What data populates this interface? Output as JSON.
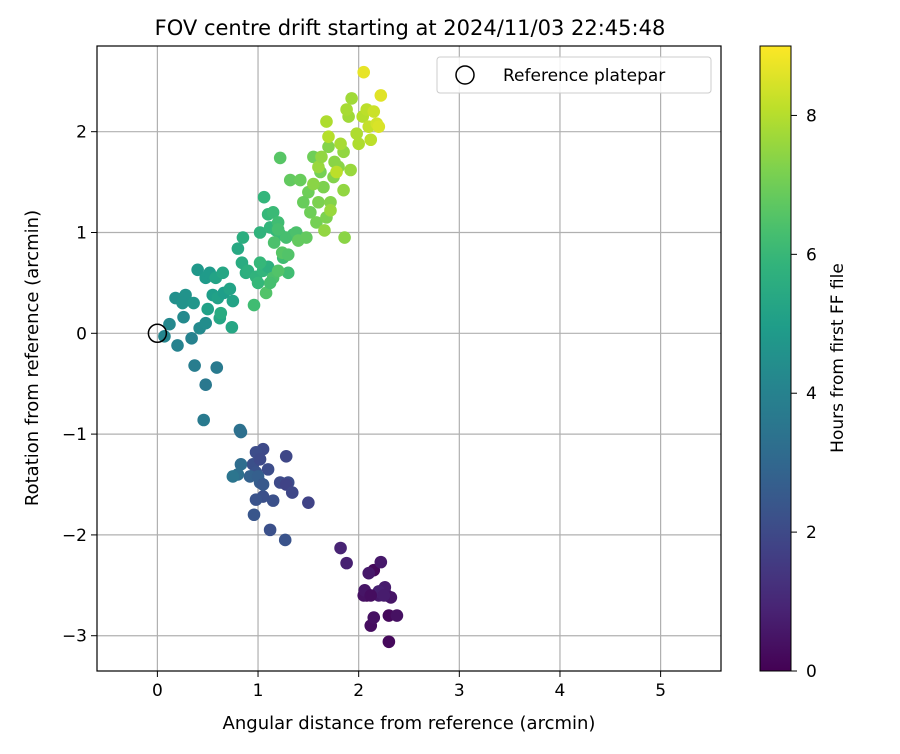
{
  "chart_data": {
    "type": "scatter",
    "title": "FOV centre drift starting at 2024/11/03 22:45:48",
    "xlabel": "Angular distance from reference (arcmin)",
    "ylabel": "Rotation from reference (arcmin)",
    "xlim": [
      -0.6,
      5.6
    ],
    "ylim": [
      -3.35,
      2.85
    ],
    "xticks": [
      0,
      1,
      2,
      3,
      4,
      5
    ],
    "xtick_labels": [
      "0",
      "1",
      "2",
      "3",
      "4",
      "5"
    ],
    "yticks": [
      -3,
      -2,
      -1,
      0,
      1,
      2
    ],
    "ytick_labels": [
      "−3",
      "−2",
      "−1",
      "0",
      "1",
      "2"
    ],
    "grid": true,
    "legend": {
      "placement": "upper right",
      "entries": [
        "Reference platepar"
      ]
    },
    "reference_point": {
      "x": 0,
      "y": 0,
      "label": "Reference platepar"
    },
    "colorbar": {
      "label": "Hours from first FF file",
      "min": 0,
      "max": 9,
      "ticks": [
        0,
        2,
        4,
        6,
        8
      ],
      "tick_labels": [
        "0",
        "2",
        "4",
        "6",
        "8"
      ],
      "colormap": "viridis"
    },
    "colormap_stops": [
      "#440154",
      "#482878",
      "#3e4a89",
      "#31688e",
      "#26828e",
      "#1f9e89",
      "#35b779",
      "#6ece58",
      "#b5de2b",
      "#fde725"
    ],
    "points": [
      [
        2.08,
        -2.6,
        0.1
      ],
      [
        2.15,
        -2.35,
        0.2
      ],
      [
        2.25,
        -2.55,
        0.3
      ],
      [
        2.3,
        -2.8,
        0.2
      ],
      [
        2.05,
        -2.6,
        0.4
      ],
      [
        2.12,
        -2.9,
        0.3
      ],
      [
        2.28,
        -2.6,
        0.5
      ],
      [
        2.38,
        -2.8,
        0.4
      ],
      [
        2.22,
        -2.27,
        0.6
      ],
      [
        2.3,
        -3.06,
        0.2
      ],
      [
        2.06,
        -2.55,
        0.5
      ],
      [
        2.2,
        -2.6,
        0.6
      ],
      [
        2.26,
        -2.52,
        0.7
      ],
      [
        2.15,
        -2.82,
        0.4
      ],
      [
        1.88,
        -2.28,
        0.8
      ],
      [
        1.82,
        -2.13,
        0.9
      ],
      [
        2.32,
        -2.62,
        0.5
      ],
      [
        2.1,
        -2.38,
        0.6
      ],
      [
        2.2,
        -2.56,
        0.8
      ],
      [
        2.25,
        -2.6,
        0.7
      ],
      [
        2.12,
        -2.6,
        0.3
      ],
      [
        1.05,
        -1.15,
        2.0
      ],
      [
        0.98,
        -1.18,
        2.1
      ],
      [
        1.28,
        -1.22,
        1.9
      ],
      [
        1.1,
        -1.35,
        2.1
      ],
      [
        0.95,
        -1.3,
        2.2
      ],
      [
        1.02,
        -1.25,
        2.0
      ],
      [
        0.98,
        -1.38,
        2.3
      ],
      [
        1.22,
        -1.48,
        2.0
      ],
      [
        1.3,
        -1.48,
        2.1
      ],
      [
        1.28,
        -1.5,
        1.8
      ],
      [
        1.34,
        -1.58,
        1.9
      ],
      [
        1.5,
        -1.68,
        1.8
      ],
      [
        1.05,
        -1.62,
        2.2
      ],
      [
        0.98,
        -1.65,
        2.3
      ],
      [
        1.15,
        -1.66,
        2.2
      ],
      [
        0.96,
        -1.8,
        2.4
      ],
      [
        1.12,
        -1.95,
        2.2
      ],
      [
        1.27,
        -2.05,
        2.3
      ],
      [
        1.02,
        -1.48,
        2.6
      ],
      [
        0.92,
        -1.42,
        2.8
      ],
      [
        1.0,
        -1.42,
        2.7
      ],
      [
        1.05,
        -1.5,
        2.5
      ],
      [
        0.83,
        -1.3,
        3.2
      ],
      [
        0.82,
        -0.96,
        3.4
      ],
      [
        0.83,
        -0.98,
        3.3
      ],
      [
        0.8,
        -1.4,
        3.3
      ],
      [
        0.75,
        -1.42,
        3.5
      ],
      [
        0.46,
        -0.86,
        3.7
      ],
      [
        0.48,
        -0.51,
        3.6
      ],
      [
        0.37,
        -0.32,
        3.8
      ],
      [
        0.59,
        -0.34,
        3.7
      ],
      [
        0.2,
        -0.12,
        4.0
      ],
      [
        0.07,
        -0.03,
        4.1
      ],
      [
        0.34,
        -0.05,
        4.0
      ],
      [
        0.12,
        0.09,
        4.2
      ],
      [
        0.42,
        0.05,
        4.3
      ],
      [
        0.48,
        0.1,
        4.4
      ],
      [
        0.26,
        0.16,
        4.3
      ],
      [
        0.18,
        0.35,
        4.5
      ],
      [
        0.28,
        0.38,
        4.6
      ],
      [
        0.25,
        0.3,
        4.6
      ],
      [
        0.36,
        0.3,
        4.7
      ],
      [
        0.4,
        0.63,
        4.8
      ],
      [
        0.48,
        0.55,
        4.9
      ],
      [
        0.52,
        0.6,
        4.9
      ],
      [
        0.55,
        0.38,
        5.0
      ],
      [
        0.6,
        0.35,
        5.1
      ],
      [
        0.66,
        0.4,
        5.0
      ],
      [
        0.72,
        0.44,
        5.2
      ],
      [
        0.74,
        0.06,
        5.3
      ],
      [
        0.75,
        0.32,
        5.2
      ],
      [
        0.8,
        0.84,
        5.4
      ],
      [
        0.62,
        0.15,
        5.3
      ],
      [
        0.5,
        0.24,
        5.1
      ],
      [
        0.58,
        0.55,
        5.2
      ],
      [
        0.65,
        0.6,
        5.3
      ],
      [
        0.63,
        0.2,
        5.5
      ],
      [
        0.84,
        0.7,
        5.5
      ],
      [
        0.88,
        0.6,
        5.6
      ],
      [
        0.85,
        0.95,
        5.6
      ],
      [
        0.9,
        0.62,
        5.7
      ],
      [
        0.98,
        0.56,
        5.8
      ],
      [
        1.05,
        0.62,
        5.9
      ],
      [
        1.1,
        0.66,
        5.7
      ],
      [
        1.02,
        1.0,
        5.8
      ],
      [
        1.06,
        1.35,
        5.9
      ],
      [
        1.1,
        1.18,
        6.0
      ],
      [
        1.12,
        1.05,
        5.9
      ],
      [
        1.15,
        1.2,
        6.1
      ],
      [
        1.18,
        1.02,
        6.0
      ],
      [
        1.2,
        1.1,
        6.2
      ],
      [
        1.22,
        0.98,
        6.1
      ],
      [
        1.25,
        0.75,
        6.2
      ],
      [
        1.28,
        0.95,
        6.3
      ],
      [
        1.3,
        0.6,
        6.2
      ],
      [
        1.35,
        0.98,
        6.3
      ],
      [
        1.38,
        1.0,
        6.4
      ],
      [
        1.22,
        1.74,
        6.6
      ],
      [
        1.15,
        0.55,
        6.4
      ],
      [
        1.08,
        0.4,
        6.5
      ],
      [
        1.12,
        0.5,
        6.3
      ],
      [
        1.2,
        0.62,
        6.5
      ],
      [
        1.02,
        0.7,
        6.0
      ],
      [
        0.96,
        0.28,
        6.2
      ],
      [
        1.0,
        0.5,
        6.0
      ],
      [
        1.32,
        1.52,
        6.8
      ],
      [
        1.42,
        1.52,
        6.9
      ],
      [
        1.5,
        1.4,
        7.0
      ],
      [
        1.55,
        1.75,
        7.0
      ],
      [
        1.45,
        1.3,
        6.9
      ],
      [
        1.4,
        0.92,
        6.8
      ],
      [
        1.48,
        0.95,
        6.8
      ],
      [
        1.52,
        1.2,
        7.0
      ],
      [
        1.58,
        1.1,
        7.1
      ],
      [
        1.62,
        1.6,
        7.1
      ],
      [
        1.6,
        1.3,
        7.2
      ],
      [
        1.65,
        1.45,
        7.2
      ],
      [
        1.68,
        1.15,
        7.2
      ],
      [
        1.7,
        1.85,
        7.3
      ],
      [
        1.72,
        1.3,
        7.3
      ],
      [
        1.75,
        1.55,
        7.3
      ],
      [
        1.76,
        1.7,
        7.4
      ],
      [
        1.8,
        1.65,
        7.4
      ],
      [
        1.85,
        1.8,
        7.5
      ],
      [
        1.85,
        1.42,
        7.5
      ],
      [
        1.86,
        0.95,
        7.4
      ],
      [
        1.92,
        1.62,
        7.6
      ],
      [
        1.9,
        2.15,
        7.7
      ],
      [
        1.93,
        2.33,
        7.7
      ],
      [
        1.88,
        2.22,
        7.8
      ],
      [
        1.98,
        1.98,
        7.9
      ],
      [
        2.0,
        1.88,
        7.9
      ],
      [
        2.04,
        2.15,
        8.0
      ],
      [
        2.08,
        2.22,
        8.1
      ],
      [
        2.1,
        2.05,
        8.2
      ],
      [
        2.12,
        1.92,
        8.1
      ],
      [
        2.15,
        2.2,
        8.3
      ],
      [
        2.18,
        2.08,
        8.4
      ],
      [
        2.2,
        2.05,
        8.5
      ],
      [
        2.22,
        2.36,
        8.6
      ],
      [
        2.05,
        2.59,
        8.7
      ],
      [
        1.7,
        1.95,
        8.0
      ],
      [
        1.68,
        2.1,
        7.9
      ],
      [
        1.78,
        1.6,
        8.1
      ],
      [
        1.82,
        1.88,
        7.8
      ],
      [
        1.6,
        1.65,
        7.6
      ],
      [
        1.63,
        1.75,
        7.5
      ],
      [
        1.55,
        1.48,
        7.4
      ],
      [
        1.72,
        1.22,
        7.6
      ],
      [
        1.66,
        1.02,
        7.5
      ],
      [
        1.2,
        1.03,
        6.3
      ],
      [
        1.16,
        0.9,
        6.4
      ],
      [
        1.24,
        0.8,
        6.6
      ],
      [
        1.3,
        0.78,
        6.5
      ]
    ]
  }
}
